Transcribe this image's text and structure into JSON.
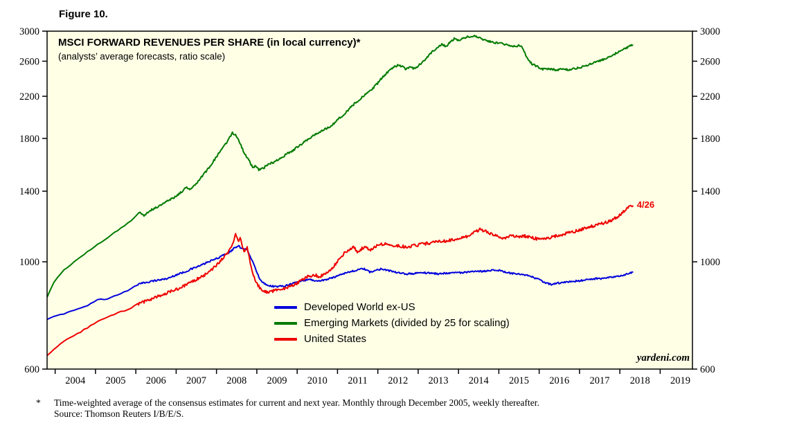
{
  "figure_label": "Figure 10.",
  "chart_data": {
    "type": "line",
    "title": "MSCI FORWARD REVENUES PER SHARE (in local currency)*",
    "subtitle": "(analysts’ average forecasts, ratio scale)",
    "y_scale": "log",
    "ylim": [
      600,
      3000
    ],
    "yticks": [
      600,
      1000,
      1400,
      1800,
      2200,
      2600,
      3000
    ],
    "xlim": [
      2003.8,
      2019.8
    ],
    "xticks": [
      2004,
      2005,
      2006,
      2007,
      2008,
      2009,
      2010,
      2011,
      2012,
      2013,
      2014,
      2015,
      2016,
      2017,
      2018,
      2019
    ],
    "grid": false,
    "plot_background": "#FFFFE6",
    "legend_position": "inside-lower-middle",
    "series": [
      {
        "name": "Developed World ex-US",
        "color": "#0000DC",
        "noise": 0.004,
        "points": [
          [
            2003.8,
            760
          ],
          [
            2004.0,
            772
          ],
          [
            2004.2,
            780
          ],
          [
            2004.4,
            792
          ],
          [
            2004.6,
            800
          ],
          [
            2004.8,
            812
          ],
          [
            2004.95,
            825
          ],
          [
            2005.1,
            840
          ],
          [
            2005.25,
            835
          ],
          [
            2005.4,
            845
          ],
          [
            2005.6,
            858
          ],
          [
            2005.8,
            872
          ],
          [
            2006.0,
            895
          ],
          [
            2006.2,
            905
          ],
          [
            2006.4,
            912
          ],
          [
            2006.6,
            918
          ],
          [
            2006.8,
            924
          ],
          [
            2007.0,
            940
          ],
          [
            2007.2,
            952
          ],
          [
            2007.4,
            968
          ],
          [
            2007.6,
            982
          ],
          [
            2007.8,
            1000
          ],
          [
            2008.0,
            1015
          ],
          [
            2008.2,
            1035
          ],
          [
            2008.35,
            1050
          ],
          [
            2008.45,
            1070
          ],
          [
            2008.55,
            1078
          ],
          [
            2008.65,
            1060
          ],
          [
            2008.75,
            1068
          ],
          [
            2008.85,
            1020
          ],
          [
            2008.95,
            975
          ],
          [
            2009.05,
            930
          ],
          [
            2009.15,
            905
          ],
          [
            2009.3,
            893
          ],
          [
            2009.5,
            888
          ],
          [
            2009.7,
            893
          ],
          [
            2009.9,
            903
          ],
          [
            2010.1,
            913
          ],
          [
            2010.3,
            920
          ],
          [
            2010.5,
            912
          ],
          [
            2010.7,
            918
          ],
          [
            2010.9,
            928
          ],
          [
            2011.1,
            944
          ],
          [
            2011.3,
            953
          ],
          [
            2011.5,
            962
          ],
          [
            2011.65,
            968
          ],
          [
            2011.8,
            952
          ],
          [
            2011.95,
            960
          ],
          [
            2012.1,
            968
          ],
          [
            2012.3,
            958
          ],
          [
            2012.5,
            948
          ],
          [
            2012.7,
            944
          ],
          [
            2012.9,
            946
          ],
          [
            2013.1,
            950
          ],
          [
            2013.3,
            948
          ],
          [
            2013.5,
            944
          ],
          [
            2013.7,
            948
          ],
          [
            2013.9,
            950
          ],
          [
            2014.1,
            950
          ],
          [
            2014.3,
            953
          ],
          [
            2014.5,
            955
          ],
          [
            2014.7,
            958
          ],
          [
            2014.9,
            963
          ],
          [
            2015.05,
            958
          ],
          [
            2015.2,
            950
          ],
          [
            2015.4,
            944
          ],
          [
            2015.6,
            940
          ],
          [
            2015.8,
            933
          ],
          [
            2016.0,
            918
          ],
          [
            2016.15,
            905
          ],
          [
            2016.3,
            898
          ],
          [
            2016.45,
            903
          ],
          [
            2016.6,
            906
          ],
          [
            2016.8,
            910
          ],
          [
            2017.0,
            914
          ],
          [
            2017.2,
            919
          ],
          [
            2017.4,
            923
          ],
          [
            2017.6,
            924
          ],
          [
            2017.8,
            929
          ],
          [
            2018.0,
            934
          ],
          [
            2018.15,
            942
          ],
          [
            2018.32,
            950
          ]
        ]
      },
      {
        "name": "Emerging Markets (divided by 25 for scaling)",
        "color": "#007A00",
        "noise": 0.005,
        "points": [
          [
            2003.8,
            845
          ],
          [
            2004.0,
            918
          ],
          [
            2004.2,
            958
          ],
          [
            2004.4,
            988
          ],
          [
            2004.6,
            1018
          ],
          [
            2004.8,
            1048
          ],
          [
            2005.0,
            1078
          ],
          [
            2005.2,
            1108
          ],
          [
            2005.4,
            1138
          ],
          [
            2005.6,
            1168
          ],
          [
            2005.8,
            1202
          ],
          [
            2006.0,
            1240
          ],
          [
            2006.1,
            1268
          ],
          [
            2006.2,
            1248
          ],
          [
            2006.35,
            1276
          ],
          [
            2006.5,
            1295
          ],
          [
            2006.65,
            1315
          ],
          [
            2006.8,
            1338
          ],
          [
            2007.0,
            1368
          ],
          [
            2007.15,
            1398
          ],
          [
            2007.25,
            1428
          ],
          [
            2007.35,
            1415
          ],
          [
            2007.5,
            1455
          ],
          [
            2007.65,
            1505
          ],
          [
            2007.8,
            1560
          ],
          [
            2007.95,
            1625
          ],
          [
            2008.1,
            1695
          ],
          [
            2008.2,
            1740
          ],
          [
            2008.3,
            1795
          ],
          [
            2008.4,
            1848
          ],
          [
            2008.5,
            1820
          ],
          [
            2008.58,
            1762
          ],
          [
            2008.66,
            1700
          ],
          [
            2008.74,
            1655
          ],
          [
            2008.82,
            1610
          ],
          [
            2008.9,
            1565
          ],
          [
            2008.98,
            1580
          ],
          [
            2009.06,
            1548
          ],
          [
            2009.15,
            1558
          ],
          [
            2009.25,
            1585
          ],
          [
            2009.35,
            1598
          ],
          [
            2009.45,
            1612
          ],
          [
            2009.6,
            1642
          ],
          [
            2009.75,
            1672
          ],
          [
            2009.9,
            1702
          ],
          [
            2010.05,
            1738
          ],
          [
            2010.2,
            1775
          ],
          [
            2010.35,
            1812
          ],
          [
            2010.5,
            1845
          ],
          [
            2010.65,
            1872
          ],
          [
            2010.8,
            1902
          ],
          [
            2010.95,
            1945
          ],
          [
            2011.1,
            2000
          ],
          [
            2011.25,
            2055
          ],
          [
            2011.4,
            2115
          ],
          [
            2011.55,
            2165
          ],
          [
            2011.7,
            2222
          ],
          [
            2011.85,
            2272
          ],
          [
            2012.0,
            2342
          ],
          [
            2012.1,
            2402
          ],
          [
            2012.2,
            2448
          ],
          [
            2012.3,
            2492
          ],
          [
            2012.4,
            2528
          ],
          [
            2012.5,
            2548
          ],
          [
            2012.6,
            2535
          ],
          [
            2012.7,
            2502
          ],
          [
            2012.8,
            2522
          ],
          [
            2012.9,
            2512
          ],
          [
            2013.0,
            2542
          ],
          [
            2013.1,
            2582
          ],
          [
            2013.2,
            2638
          ],
          [
            2013.3,
            2698
          ],
          [
            2013.4,
            2742
          ],
          [
            2013.5,
            2782
          ],
          [
            2013.6,
            2818
          ],
          [
            2013.7,
            2785
          ],
          [
            2013.8,
            2855
          ],
          [
            2013.9,
            2895
          ],
          [
            2014.0,
            2872
          ],
          [
            2014.1,
            2898
          ],
          [
            2014.2,
            2915
          ],
          [
            2014.3,
            2928
          ],
          [
            2014.4,
            2938
          ],
          [
            2014.5,
            2918
          ],
          [
            2014.6,
            2888
          ],
          [
            2014.7,
            2862
          ],
          [
            2014.8,
            2852
          ],
          [
            2014.9,
            2842
          ],
          [
            2015.0,
            2832
          ],
          [
            2015.1,
            2822
          ],
          [
            2015.2,
            2812
          ],
          [
            2015.3,
            2802
          ],
          [
            2015.4,
            2792
          ],
          [
            2015.5,
            2802
          ],
          [
            2015.6,
            2762
          ],
          [
            2015.7,
            2645
          ],
          [
            2015.8,
            2575
          ],
          [
            2015.9,
            2545
          ],
          [
            2016.0,
            2522
          ],
          [
            2016.1,
            2502
          ],
          [
            2016.25,
            2512
          ],
          [
            2016.4,
            2495
          ],
          [
            2016.55,
            2502
          ],
          [
            2016.7,
            2495
          ],
          [
            2016.85,
            2508
          ],
          [
            2017.0,
            2522
          ],
          [
            2017.15,
            2545
          ],
          [
            2017.3,
            2572
          ],
          [
            2017.45,
            2598
          ],
          [
            2017.6,
            2625
          ],
          [
            2017.75,
            2655
          ],
          [
            2017.9,
            2698
          ],
          [
            2018.05,
            2738
          ],
          [
            2018.2,
            2782
          ],
          [
            2018.32,
            2815
          ]
        ]
      },
      {
        "name": "United States",
        "color": "#EE0000",
        "noise": 0.007,
        "points": [
          [
            2003.8,
            640
          ],
          [
            2004.0,
            662
          ],
          [
            2004.2,
            685
          ],
          [
            2004.35,
            695
          ],
          [
            2004.5,
            705
          ],
          [
            2004.7,
            722
          ],
          [
            2004.9,
            738
          ],
          [
            2005.1,
            755
          ],
          [
            2005.3,
            768
          ],
          [
            2005.5,
            780
          ],
          [
            2005.7,
            792
          ],
          [
            2005.9,
            805
          ],
          [
            2006.1,
            820
          ],
          [
            2006.3,
            833
          ],
          [
            2006.5,
            845
          ],
          [
            2006.7,
            858
          ],
          [
            2006.9,
            870
          ],
          [
            2007.1,
            884
          ],
          [
            2007.3,
            900
          ],
          [
            2007.5,
            920
          ],
          [
            2007.7,
            938
          ],
          [
            2007.9,
            965
          ],
          [
            2008.05,
            995
          ],
          [
            2008.15,
            1015
          ],
          [
            2008.25,
            1035
          ],
          [
            2008.35,
            1070
          ],
          [
            2008.42,
            1105
          ],
          [
            2008.48,
            1140
          ],
          [
            2008.54,
            1095
          ],
          [
            2008.6,
            1120
          ],
          [
            2008.68,
            1045
          ],
          [
            2008.76,
            1070
          ],
          [
            2008.84,
            990
          ],
          [
            2008.92,
            935
          ],
          [
            2009.0,
            900
          ],
          [
            2009.1,
            878
          ],
          [
            2009.25,
            865
          ],
          [
            2009.4,
            870
          ],
          [
            2009.55,
            876
          ],
          [
            2009.7,
            882
          ],
          [
            2009.85,
            890
          ],
          [
            2010.0,
            903
          ],
          [
            2010.15,
            920
          ],
          [
            2010.3,
            935
          ],
          [
            2010.45,
            940
          ],
          [
            2010.55,
            930
          ],
          [
            2010.7,
            948
          ],
          [
            2010.85,
            968
          ],
          [
            2011.0,
            1000
          ],
          [
            2011.1,
            1028
          ],
          [
            2011.2,
            1048
          ],
          [
            2011.3,
            1060
          ],
          [
            2011.4,
            1072
          ],
          [
            2011.5,
            1048
          ],
          [
            2011.6,
            1065
          ],
          [
            2011.7,
            1078
          ],
          [
            2011.8,
            1058
          ],
          [
            2011.9,
            1072
          ],
          [
            2012.0,
            1082
          ],
          [
            2012.15,
            1090
          ],
          [
            2012.3,
            1083
          ],
          [
            2012.5,
            1078
          ],
          [
            2012.7,
            1074
          ],
          [
            2012.9,
            1080
          ],
          [
            2013.1,
            1088
          ],
          [
            2013.3,
            1094
          ],
          [
            2013.5,
            1100
          ],
          [
            2013.7,
            1106
          ],
          [
            2013.9,
            1112
          ],
          [
            2014.1,
            1122
          ],
          [
            2014.3,
            1135
          ],
          [
            2014.45,
            1158
          ],
          [
            2014.55,
            1168
          ],
          [
            2014.7,
            1152
          ],
          [
            2014.85,
            1140
          ],
          [
            2015.0,
            1128
          ],
          [
            2015.15,
            1118
          ],
          [
            2015.3,
            1136
          ],
          [
            2015.45,
            1126
          ],
          [
            2015.6,
            1132
          ],
          [
            2015.75,
            1126
          ],
          [
            2015.9,
            1118
          ],
          [
            2016.05,
            1114
          ],
          [
            2016.2,
            1120
          ],
          [
            2016.4,
            1130
          ],
          [
            2016.6,
            1140
          ],
          [
            2016.8,
            1152
          ],
          [
            2017.0,
            1164
          ],
          [
            2017.2,
            1178
          ],
          [
            2017.4,
            1190
          ],
          [
            2017.6,
            1202
          ],
          [
            2017.8,
            1220
          ],
          [
            2017.95,
            1238
          ],
          [
            2018.1,
            1272
          ],
          [
            2018.2,
            1292
          ],
          [
            2018.32,
            1308
          ]
        ]
      }
    ],
    "annotation": {
      "text": "4/26",
      "color": "#EE0000",
      "series": "United States"
    },
    "watermark": "yardeni.com"
  },
  "footnote": {
    "marker": "*",
    "line1": "Time-weighted average of the consensus estimates for current and next year. Monthly through December 2005, weekly thereafter.",
    "line2": "Source: Thomson Reuters I/B/E/S."
  }
}
